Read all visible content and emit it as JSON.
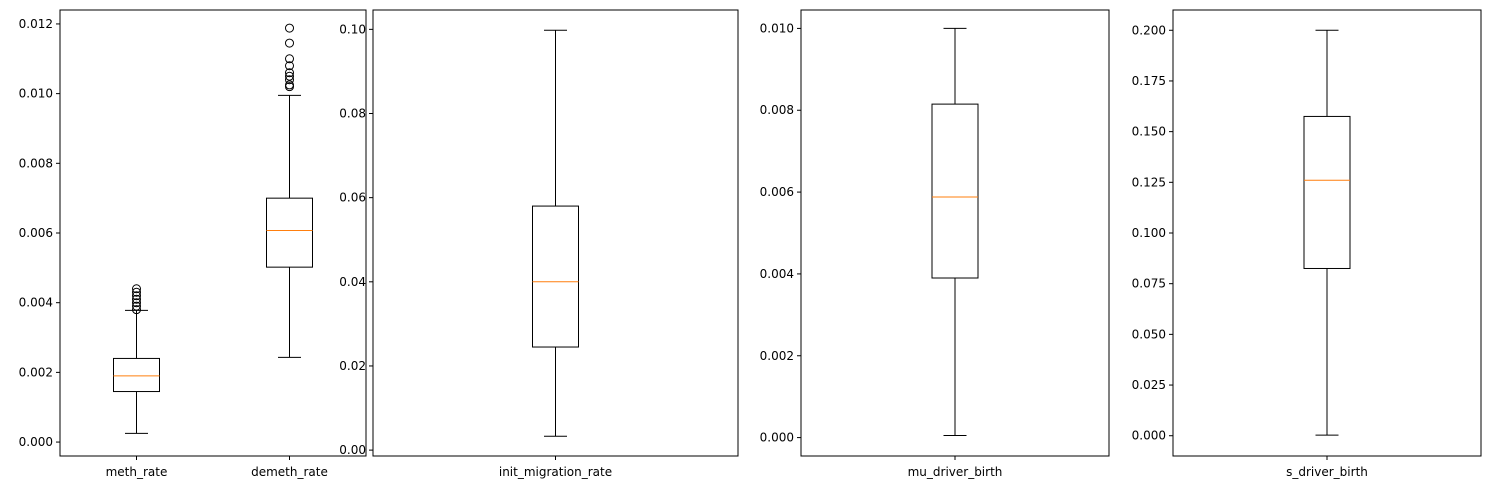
{
  "chart_data": [
    {
      "type": "box",
      "categories": [
        "meth_rate",
        "demeth_rate"
      ],
      "ylim": [
        -0.0004,
        0.0124
      ],
      "yticks": [
        0.0,
        0.002,
        0.004,
        0.006,
        0.008,
        0.01,
        0.012
      ],
      "ytick_labels": [
        "0.000",
        "0.002",
        "0.004",
        "0.006",
        "0.008",
        "0.010",
        "0.012"
      ],
      "boxes": [
        {
          "label": "meth_rate",
          "whisker_low": 0.00025,
          "q1": 0.00145,
          "median": 0.0019,
          "q3": 0.0024,
          "whisker_high": 0.00378,
          "outliers": [
            0.0038,
            0.0039,
            0.004,
            0.0041,
            0.0042,
            0.0043,
            0.0044
          ]
        },
        {
          "label": "demeth_rate",
          "whisker_low": 0.00243,
          "q1": 0.00502,
          "median": 0.00607,
          "q3": 0.007,
          "whisker_high": 0.00995,
          "outliers": [
            0.0102,
            0.01025,
            0.0104,
            0.0105,
            0.0106,
            0.0108,
            0.011,
            0.01145,
            0.01188
          ]
        }
      ]
    },
    {
      "type": "box",
      "categories": [
        "init_migration_rate"
      ],
      "ylim": [
        -0.0014,
        0.1046
      ],
      "yticks": [
        0.0,
        0.02,
        0.04,
        0.06,
        0.08,
        0.1
      ],
      "ytick_labels": [
        "0.00",
        "0.02",
        "0.04",
        "0.06",
        "0.08",
        "0.10"
      ],
      "boxes": [
        {
          "label": "init_migration_rate",
          "whisker_low": 0.0033,
          "q1": 0.0245,
          "median": 0.04,
          "q3": 0.058,
          "whisker_high": 0.0998,
          "outliers": []
        }
      ]
    },
    {
      "type": "box",
      "categories": [
        "mu_driver_birth"
      ],
      "ylim": [
        -0.00045,
        0.01045
      ],
      "yticks": [
        0.0,
        0.002,
        0.004,
        0.006,
        0.008,
        0.01
      ],
      "ytick_labels": [
        "0.000",
        "0.002",
        "0.004",
        "0.006",
        "0.008",
        "0.010"
      ],
      "boxes": [
        {
          "label": "mu_driver_birth",
          "whisker_low": 5e-05,
          "q1": 0.0039,
          "median": 0.00588,
          "q3": 0.00815,
          "whisker_high": 0.01,
          "outliers": []
        }
      ]
    },
    {
      "type": "box",
      "categories": [
        "s_driver_birth"
      ],
      "ylim": [
        -0.01,
        0.21
      ],
      "yticks": [
        0.0,
        0.025,
        0.05,
        0.075,
        0.1,
        0.125,
        0.15,
        0.175,
        0.2
      ],
      "ytick_labels": [
        "0.000",
        "0.025",
        "0.050",
        "0.075",
        "0.100",
        "0.125",
        "0.150",
        "0.175",
        "0.200"
      ],
      "boxes": [
        {
          "label": "s_driver_birth",
          "whisker_low": 0.0003,
          "q1": 0.0825,
          "median": 0.126,
          "q3": 0.1575,
          "whisker_high": 0.2,
          "outliers": []
        }
      ]
    }
  ],
  "colors": {
    "box": "#000000",
    "median": "#ff7f0e",
    "background": "#ffffff"
  }
}
